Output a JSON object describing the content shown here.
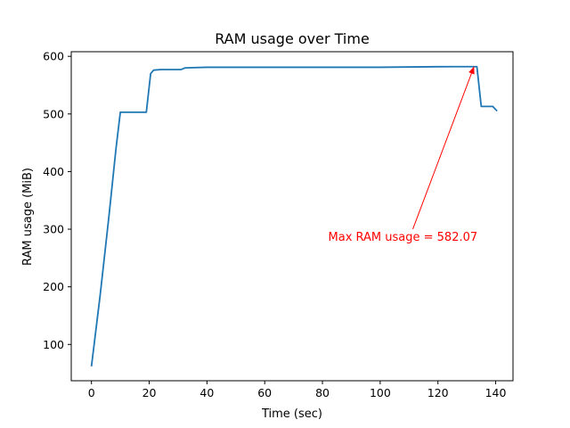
{
  "chart_data": {
    "type": "line",
    "title": "RAM usage over Time",
    "xlabel": "Time (sec)",
    "ylabel": "RAM usage (MiB)",
    "xlim": [
      -7,
      146
    ],
    "ylim": [
      37,
      608
    ],
    "xticks": [
      0,
      20,
      40,
      60,
      80,
      100,
      120,
      140
    ],
    "yticks": [
      100,
      200,
      300,
      400,
      500,
      600
    ],
    "grid": false,
    "line_color": "#1f77b4",
    "series": [
      {
        "x": [
          0,
          3,
          6,
          8.5,
          10,
          14,
          19,
          20.5,
          21.5,
          24,
          27,
          31,
          32.5,
          40,
          60,
          80,
          100,
          120,
          133.5,
          135,
          139,
          140.5
        ],
        "y": [
          62,
          185,
          320,
          440,
          503,
          503,
          503,
          570,
          576,
          577,
          577,
          577,
          580,
          581,
          581,
          581,
          581,
          582,
          582.07,
          513,
          513,
          505
        ]
      }
    ],
    "annotation": {
      "text": "Max RAM usage = 582.07",
      "color": "#ff0000",
      "xy": [
        132.5,
        582.07
      ],
      "xytext": [
        82,
        280
      ]
    }
  }
}
